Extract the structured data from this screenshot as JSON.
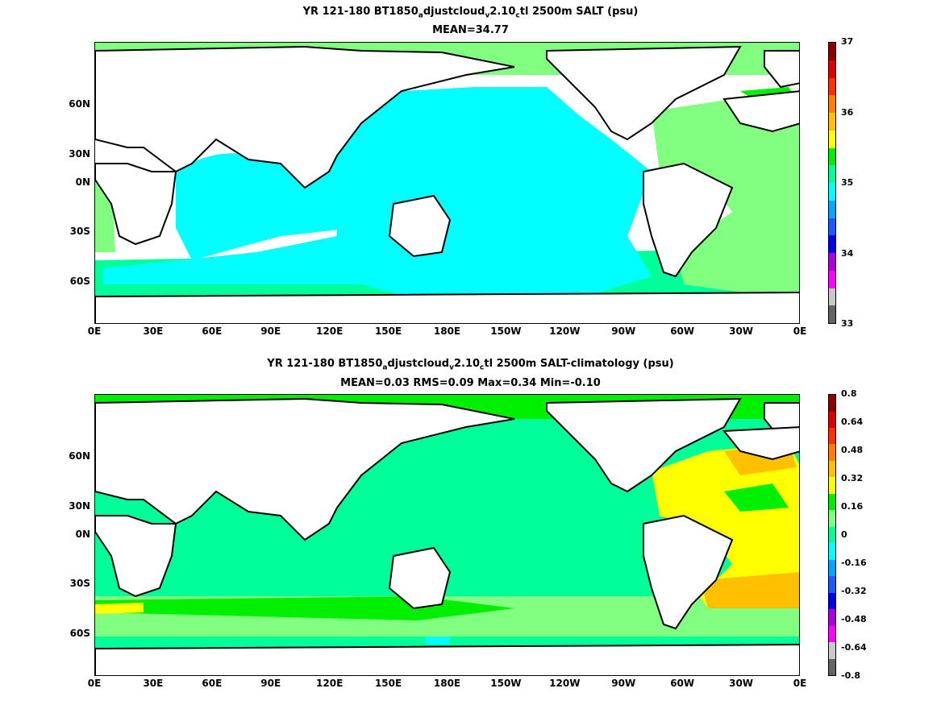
{
  "top": {
    "title_pre": "YR 121-180 BT1850",
    "title_s1": "a",
    "title_mid1": "djustcloud",
    "title_s2": "v",
    "title_mid2": "2.10",
    "title_s3": "c",
    "title_post": "tl 2500m SALT (psu)",
    "subtitle": "MEAN=34.77",
    "colorbar_labels": [
      "37",
      "36",
      "35",
      "34",
      "33"
    ],
    "colorbar_colors": [
      "#636363",
      "#c8c8c8",
      "#ff00ff",
      "#aa00dd",
      "#0000ee",
      "#1f57ff",
      "#00a8ff",
      "#00ffff",
      "#00ff99",
      "#00ee00",
      "#ffff00",
      "#ffc000",
      "#ff8000",
      "#ff3000",
      "#dd0000",
      "#8c0000"
    ]
  },
  "bottom": {
    "title_pre": "YR 121-180 BT1850",
    "title_s1": "a",
    "title_mid1": "djustcloud",
    "title_s2": "v",
    "title_mid2": "2.10",
    "title_s3": "c",
    "title_post": "tl 2500m SALT-climatology (psu)",
    "subtitle": "MEAN=0.03   RMS=0.09   Max=0.34   Min=-0.10",
    "colorbar_labels": [
      "0.8",
      "0.64",
      "0.48",
      "0.32",
      "0.16",
      "0",
      "-0.16",
      "-0.32",
      "-0.48",
      "-0.64",
      "-0.8"
    ],
    "colorbar_colors": [
      "#636363",
      "#c8c8c8",
      "#ff00ff",
      "#aa00dd",
      "#0000ee",
      "#1f57ff",
      "#00a8ff",
      "#00ffff",
      "#00ff99",
      "#80ff80",
      "#00ee00",
      "#ffff00",
      "#ffc000",
      "#ff8000",
      "#ff3000",
      "#dd0000",
      "#8c0000"
    ]
  },
  "axes": {
    "lon_labels": [
      "0E",
      "30E",
      "60E",
      "90E",
      "120E",
      "150E",
      "180E",
      "150W",
      "120W",
      "90W",
      "60W",
      "30W",
      "0E"
    ],
    "lat_labels": [
      "60N",
      "30N",
      "0N",
      "30S",
      "60S"
    ]
  },
  "colors": {
    "land": "#ffffff",
    "coast": "#000000",
    "top_pacific": "#00ffff",
    "top_atlantic": "#80ff80",
    "top_southern": "#00ff99",
    "top_high": "#00ee00",
    "bot_base": "#00ff99",
    "bot_light": "#80ff80",
    "bot_green": "#00ee00",
    "bot_yellow": "#ffff00",
    "bot_orange": "#ffc000",
    "bot_blue": "#00ffff"
  }
}
